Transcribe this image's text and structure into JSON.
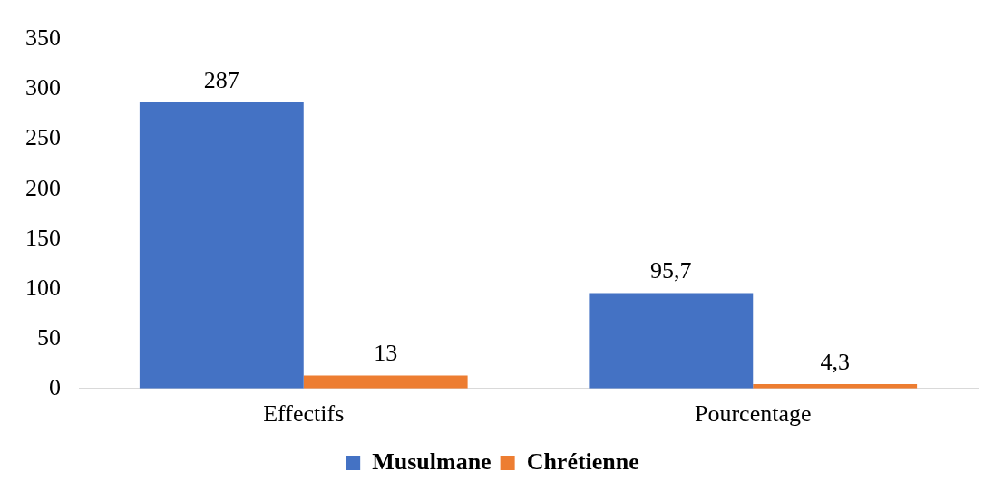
{
  "chart_data": {
    "type": "bar",
    "categories": [
      "Effectifs",
      "Pourcentage"
    ],
    "series": [
      {
        "name": "Musulmane",
        "color": "#4472c4",
        "values": [
          287,
          95.7
        ],
        "value_labels": [
          "287",
          "95,7"
        ]
      },
      {
        "name": "Chrétienne",
        "color": "#ed7d31",
        "values": [
          13,
          4.3
        ],
        "value_labels": [
          "13",
          "4,3"
        ]
      }
    ],
    "ylim": [
      0,
      350
    ],
    "yticks": [
      0,
      50,
      100,
      150,
      200,
      250,
      300,
      350
    ],
    "grid": false,
    "legend": "bottom"
  }
}
